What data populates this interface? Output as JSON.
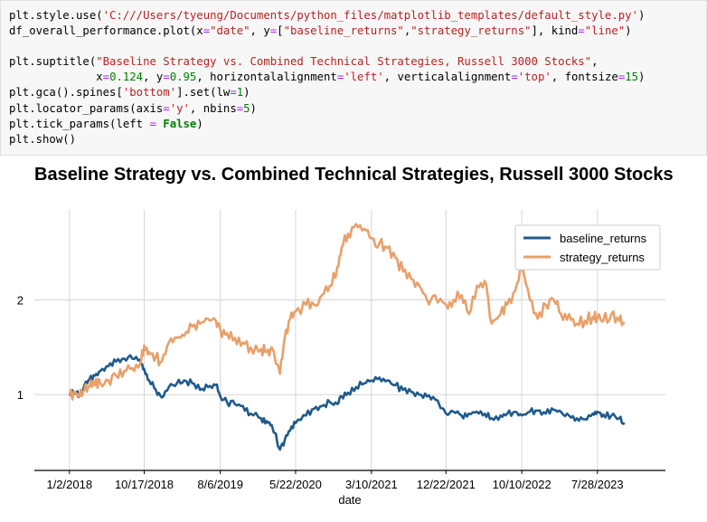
{
  "code_cell": {
    "lines": [
      "plt.style.use('C:///Users/tyeung/Documents/python_files/matplotlib_templates/default_style.py')",
      "df_overall_performance.plot(x=\"date\", y=[\"baseline_returns\",\"strategy_returns\"], kind=\"line\")",
      "",
      "plt.suptitle(\"Baseline Strategy vs. Combined Technical Strategies, Russell 3000 Stocks\",",
      "             x=0.124, y=0.95, horizontalalignment='left', verticalalignment='top', fontsize=15)",
      "plt.gca().spines['bottom'].set(lw=1)",
      "plt.locator_params(axis='y', nbins=5)",
      "plt.tick_params(left = False)",
      "plt.show()"
    ]
  },
  "chart_data": {
    "type": "line",
    "title": "Baseline Strategy vs. Combined Technical Strategies, Russell 3000 Stocks",
    "xlabel": "date",
    "ylabel": "",
    "x_tick_labels": [
      "1/2/2018",
      "10/17/2018",
      "8/6/2019",
      "5/22/2020",
      "3/10/2021",
      "12/22/2021",
      "10/10/2022",
      "7/28/2023"
    ],
    "x_ticks": [
      "2018-01-02",
      "2018-10-17",
      "2019-08-06",
      "2020-05-22",
      "2021-03-10",
      "2021-12-22",
      "2022-10-10",
      "2023-07-28"
    ],
    "xlim": [
      "2017-08-20",
      "2024-04-15"
    ],
    "y_ticks": [
      1,
      2
    ],
    "ylim": [
      0.2,
      2.95
    ],
    "grid": true,
    "legend_position": "top-right",
    "series": [
      {
        "name": "baseline_returns",
        "color": "#1f5a8c",
        "x": [
          "2018-01-02",
          "2018-01-25",
          "2018-02-10",
          "2018-03-01",
          "2018-03-20",
          "2018-04-10",
          "2018-05-01",
          "2018-06-01",
          "2018-07-01",
          "2018-08-01",
          "2018-09-01",
          "2018-10-01",
          "2018-10-17",
          "2018-11-05",
          "2018-12-01",
          "2018-12-24",
          "2019-01-20",
          "2019-02-20",
          "2019-03-20",
          "2019-04-20",
          "2019-05-20",
          "2019-06-20",
          "2019-07-20",
          "2019-08-06",
          "2019-09-01",
          "2019-10-01",
          "2019-11-01",
          "2019-12-01",
          "2020-01-10",
          "2020-02-01",
          "2020-02-20",
          "2020-03-23",
          "2020-04-10",
          "2020-05-01",
          "2020-05-22",
          "2020-07-01",
          "2020-08-01",
          "2020-09-01",
          "2020-10-01",
          "2020-10-30",
          "2020-11-15",
          "2020-12-10",
          "2021-01-10",
          "2021-02-10",
          "2021-03-10",
          "2021-04-10",
          "2021-05-10",
          "2021-06-10",
          "2021-07-10",
          "2021-08-10",
          "2021-09-10",
          "2021-10-10",
          "2021-11-10",
          "2021-12-22",
          "2022-01-20",
          "2022-02-20",
          "2022-03-20",
          "2022-04-20",
          "2022-05-20",
          "2022-06-16",
          "2022-07-20",
          "2022-08-15",
          "2022-09-15",
          "2022-10-10",
          "2022-11-10",
          "2022-12-10",
          "2023-01-10",
          "2023-02-10",
          "2023-03-10",
          "2023-04-10",
          "2023-05-10",
          "2023-06-10",
          "2023-07-10",
          "2023-07-28",
          "2023-08-20",
          "2023-09-20",
          "2023-10-20",
          "2023-11-10"
        ],
        "values": [
          1.0,
          1.02,
          0.98,
          1.1,
          1.16,
          1.2,
          1.25,
          1.3,
          1.35,
          1.38,
          1.38,
          1.37,
          1.27,
          1.15,
          1.05,
          0.97,
          1.08,
          1.12,
          1.15,
          1.12,
          1.05,
          1.08,
          1.1,
          0.98,
          0.92,
          0.9,
          0.88,
          0.8,
          0.75,
          0.72,
          0.68,
          0.42,
          0.52,
          0.62,
          0.7,
          0.78,
          0.85,
          0.88,
          0.92,
          0.9,
          0.98,
          1.02,
          1.08,
          1.12,
          1.15,
          1.18,
          1.15,
          1.1,
          1.05,
          1.03,
          1.0,
          0.98,
          0.95,
          0.8,
          0.82,
          0.78,
          0.8,
          0.82,
          0.8,
          0.75,
          0.78,
          0.8,
          0.82,
          0.78,
          0.82,
          0.83,
          0.8,
          0.84,
          0.82,
          0.78,
          0.75,
          0.74,
          0.8,
          0.82,
          0.79,
          0.78,
          0.75,
          0.7
        ]
      },
      {
        "name": "strategy_returns",
        "color": "#e8a06a",
        "x": [
          "2018-01-02",
          "2018-01-25",
          "2018-02-10",
          "2018-03-01",
          "2018-03-20",
          "2018-04-10",
          "2018-05-01",
          "2018-06-01",
          "2018-07-01",
          "2018-08-01",
          "2018-09-01",
          "2018-10-01",
          "2018-10-17",
          "2018-11-05",
          "2018-12-01",
          "2018-12-24",
          "2019-01-20",
          "2019-02-20",
          "2019-03-20",
          "2019-04-20",
          "2019-05-20",
          "2019-06-20",
          "2019-07-20",
          "2019-08-06",
          "2019-09-01",
          "2019-10-01",
          "2019-11-01",
          "2019-12-01",
          "2020-01-10",
          "2020-02-01",
          "2020-02-20",
          "2020-03-23",
          "2020-04-10",
          "2020-05-01",
          "2020-05-22",
          "2020-07-01",
          "2020-08-01",
          "2020-09-01",
          "2020-10-01",
          "2020-10-30",
          "2020-11-15",
          "2020-12-10",
          "2021-01-10",
          "2021-02-10",
          "2021-03-10",
          "2021-04-10",
          "2021-05-10",
          "2021-06-10",
          "2021-07-10",
          "2021-08-10",
          "2021-09-10",
          "2021-10-10",
          "2021-11-10",
          "2021-12-22",
          "2022-01-20",
          "2022-02-20",
          "2022-03-20",
          "2022-04-20",
          "2022-05-20",
          "2022-06-16",
          "2022-07-20",
          "2022-08-15",
          "2022-09-15",
          "2022-10-10",
          "2022-11-10",
          "2022-12-10",
          "2023-01-10",
          "2023-02-10",
          "2023-03-10",
          "2023-04-10",
          "2023-05-10",
          "2023-06-10",
          "2023-07-10",
          "2023-07-28",
          "2023-08-20",
          "2023-09-20",
          "2023-10-20",
          "2023-11-10"
        ],
        "values": [
          1.0,
          1.02,
          0.98,
          1.05,
          1.08,
          1.1,
          1.12,
          1.15,
          1.2,
          1.25,
          1.28,
          1.32,
          1.52,
          1.45,
          1.4,
          1.35,
          1.55,
          1.6,
          1.62,
          1.72,
          1.75,
          1.8,
          1.78,
          1.68,
          1.65,
          1.6,
          1.55,
          1.5,
          1.48,
          1.45,
          1.5,
          1.22,
          1.6,
          1.8,
          1.88,
          1.95,
          1.95,
          2.05,
          2.15,
          2.35,
          2.55,
          2.7,
          2.8,
          2.75,
          2.65,
          2.6,
          2.55,
          2.45,
          2.3,
          2.22,
          2.15,
          2.0,
          2.05,
          1.95,
          2.0,
          2.05,
          1.85,
          2.15,
          2.2,
          1.75,
          1.85,
          1.95,
          2.1,
          2.35,
          2.0,
          1.8,
          1.95,
          2.0,
          1.85,
          1.85,
          1.75,
          1.78,
          1.82,
          1.8,
          1.78,
          1.85,
          1.78,
          1.75
        ]
      }
    ]
  }
}
